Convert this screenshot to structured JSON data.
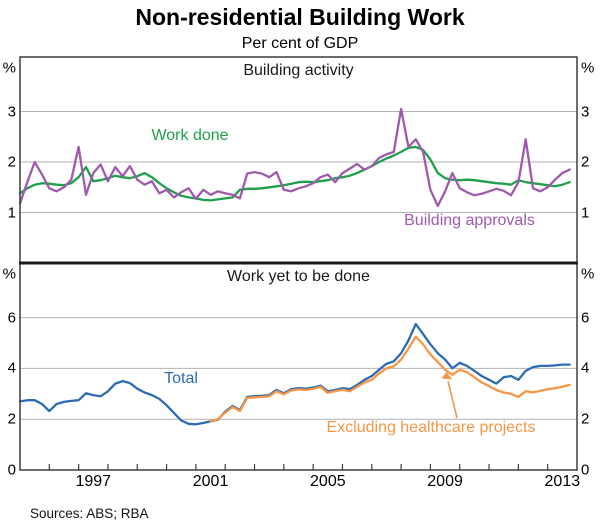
{
  "title": "Non-residential Building Work",
  "subtitle": "Per cent of GDP",
  "source_note": "Sources:  ABS; RBA",
  "axis_unit": "%",
  "x_axis": {
    "start_year": 1995,
    "end_year": 2014,
    "tick_interval_years": 1,
    "labels": [
      "1997",
      "2001",
      "2005",
      "2009",
      "2013"
    ],
    "label_year_centers": [
      1997.5,
      2001.5,
      2005.5,
      2009.5,
      2013.5
    ]
  },
  "colors": {
    "work_done": "#1ea04b",
    "building_approvals": "#a05aad",
    "total": "#2d6cb5",
    "excluding_healthcare": "#f79646",
    "gridline": "#b3b3b3",
    "frame": "#3d3d3d",
    "separator": "#1a1a1a"
  },
  "chart_data": [
    {
      "type": "line",
      "panel_title": "Building activity",
      "unit": "%",
      "ylim": [
        0,
        4.08
      ],
      "yticks": [
        1,
        2,
        3
      ],
      "ytick_zero_label": false,
      "x_start_year": 1995.0,
      "x_step_years": 0.25,
      "series": [
        {
          "name": "Work done",
          "color_key": "work_done",
          "x_start_year": 1995.0,
          "values": [
            1.38,
            1.48,
            1.55,
            1.58,
            1.57,
            1.55,
            1.54,
            1.58,
            1.7,
            1.9,
            1.62,
            1.64,
            1.68,
            1.73,
            1.7,
            1.68,
            1.72,
            1.78,
            1.7,
            1.58,
            1.48,
            1.4,
            1.33,
            1.3,
            1.28,
            1.25,
            1.24,
            1.26,
            1.28,
            1.3,
            1.45,
            1.47,
            1.47,
            1.48,
            1.5,
            1.52,
            1.54,
            1.57,
            1.6,
            1.61,
            1.6,
            1.62,
            1.64,
            1.68,
            1.7,
            1.73,
            1.78,
            1.85,
            1.92,
            2.0,
            2.07,
            2.13,
            2.2,
            2.28,
            2.3,
            2.24,
            2.05,
            1.78,
            1.68,
            1.65,
            1.64,
            1.65,
            1.64,
            1.62,
            1.6,
            1.58,
            1.57,
            1.55,
            1.64,
            1.6,
            1.58,
            1.56,
            1.54,
            1.52,
            1.55,
            1.6
          ]
        },
        {
          "name": "Building approvals",
          "color_key": "building_approvals",
          "x_start_year": 1995.0,
          "values": [
            1.18,
            1.6,
            2.0,
            1.75,
            1.48,
            1.42,
            1.5,
            1.65,
            2.3,
            1.35,
            1.78,
            1.95,
            1.62,
            1.9,
            1.72,
            1.92,
            1.65,
            1.55,
            1.62,
            1.38,
            1.45,
            1.3,
            1.4,
            1.48,
            1.27,
            1.45,
            1.35,
            1.42,
            1.38,
            1.35,
            1.28,
            1.77,
            1.8,
            1.77,
            1.7,
            1.8,
            1.45,
            1.42,
            1.48,
            1.52,
            1.58,
            1.7,
            1.75,
            1.6,
            1.78,
            1.87,
            1.96,
            1.85,
            1.92,
            2.08,
            2.15,
            2.2,
            3.05,
            2.3,
            2.45,
            2.2,
            1.45,
            1.13,
            1.42,
            1.78,
            1.48,
            1.4,
            1.34,
            1.37,
            1.42,
            1.47,
            1.43,
            1.34,
            1.6,
            2.45,
            1.48,
            1.42,
            1.5,
            1.65,
            1.78,
            1.85
          ]
        }
      ]
    },
    {
      "type": "line",
      "panel_title": "Work yet to be done",
      "unit": "%",
      "ylim": [
        0,
        8.15
      ],
      "yticks": [
        0,
        2,
        4,
        6
      ],
      "ytick_zero_label": true,
      "x_start_year": 1995.0,
      "x_step_years": 0.25,
      "series": [
        {
          "name": "Total",
          "color_key": "total",
          "x_start_year": 1995.0,
          "values": [
            2.7,
            2.75,
            2.75,
            2.6,
            2.32,
            2.6,
            2.68,
            2.72,
            2.75,
            3.02,
            2.95,
            2.9,
            3.1,
            3.4,
            3.5,
            3.42,
            3.2,
            3.05,
            2.95,
            2.8,
            2.55,
            2.25,
            1.95,
            1.82,
            1.8,
            1.85,
            1.92,
            1.98,
            2.3,
            2.52,
            2.36,
            2.88,
            2.9,
            2.92,
            2.95,
            3.15,
            3.02,
            3.18,
            3.22,
            3.2,
            3.25,
            3.32,
            3.1,
            3.15,
            3.22,
            3.18,
            3.35,
            3.55,
            3.7,
            3.95,
            4.18,
            4.28,
            4.6,
            5.1,
            5.75,
            5.35,
            4.95,
            4.6,
            4.35,
            4.0,
            4.22,
            4.1,
            3.9,
            3.7,
            3.55,
            3.4,
            3.65,
            3.7,
            3.55,
            3.9,
            4.05,
            4.1,
            4.1,
            4.12,
            4.15,
            4.15
          ]
        },
        {
          "name": "Excluding healthcare projects",
          "color_key": "excluding_healthcare",
          "x_start_year": 2001.5,
          "values": [
            1.93,
            2.0,
            2.26,
            2.48,
            2.32,
            2.84,
            2.86,
            2.88,
            2.9,
            3.1,
            2.98,
            3.13,
            3.17,
            3.15,
            3.2,
            3.27,
            3.04,
            3.1,
            3.16,
            3.1,
            3.27,
            3.45,
            3.55,
            3.8,
            4.0,
            4.08,
            4.35,
            4.78,
            5.25,
            4.95,
            4.55,
            4.25,
            3.95,
            3.75,
            3.95,
            3.85,
            3.65,
            3.45,
            3.3,
            3.15,
            3.05,
            3.0,
            2.88,
            3.1,
            3.05,
            3.12,
            3.18,
            3.22,
            3.28,
            3.35
          ]
        }
      ]
    }
  ]
}
